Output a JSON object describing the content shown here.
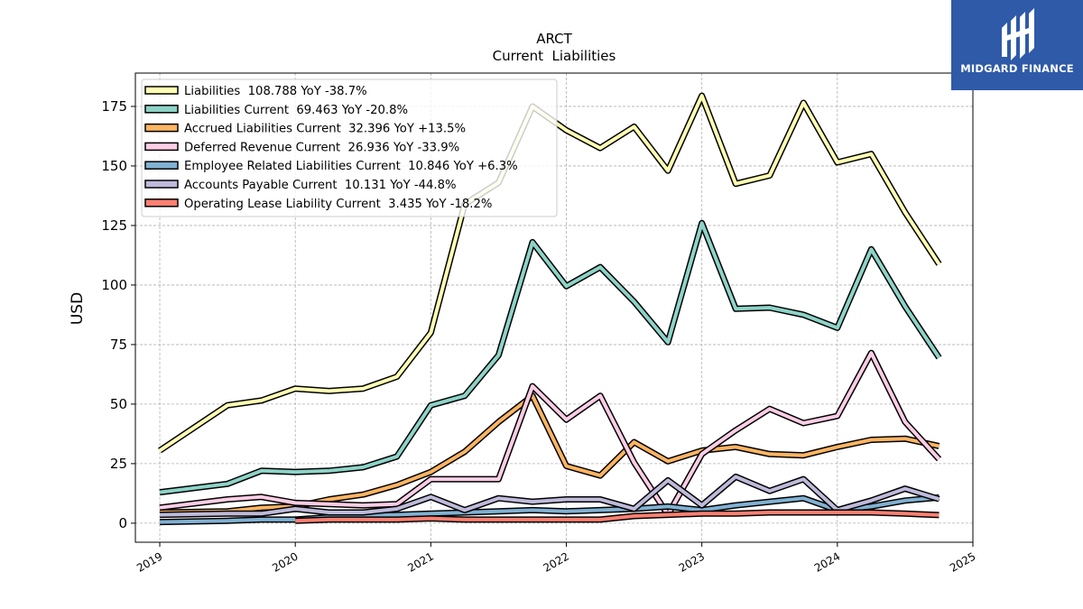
{
  "logo": {
    "text": "MIDGARD FINANCE"
  },
  "chart_data": {
    "type": "line",
    "title": "ARCT",
    "subtitle": "Current  Liabilities",
    "ylabel": "USD",
    "xlabel": "",
    "xlim": [
      2018.82,
      2025.0
    ],
    "ylim": [
      -8,
      189
    ],
    "yticks": [
      0,
      25,
      50,
      75,
      100,
      125,
      150,
      175
    ],
    "xticks": [
      2019,
      2020,
      2021,
      2022,
      2023,
      2024,
      2025
    ],
    "grid": true,
    "legend_position": "top-left",
    "series": [
      {
        "name": "Liabilities",
        "legend": "Liabilities  108.788 YoY -38.7%",
        "color": "#ffffb3",
        "points": [
          [
            2019.0,
            30.5
          ],
          [
            2019.5,
            49.5
          ],
          [
            2019.75,
            51.5
          ],
          [
            2020.0,
            56.5
          ],
          [
            2020.25,
            55.5
          ],
          [
            2020.5,
            56.5
          ],
          [
            2020.75,
            61.5
          ],
          [
            2021.0,
            80
          ],
          [
            2021.25,
            134
          ],
          [
            2021.5,
            143
          ],
          [
            2021.75,
            175
          ],
          [
            2022.0,
            165
          ],
          [
            2022.25,
            157.5
          ],
          [
            2022.5,
            166.5
          ],
          [
            2022.75,
            148
          ],
          [
            2023.0,
            179.5
          ],
          [
            2023.25,
            142.5
          ],
          [
            2023.5,
            146
          ],
          [
            2023.75,
            176.5
          ],
          [
            2024.0,
            151.5
          ],
          [
            2024.25,
            155
          ],
          [
            2024.5,
            130.5
          ],
          [
            2024.75,
            108.8
          ]
        ]
      },
      {
        "name": "Liabilities Current",
        "legend": "Liabilities Current  69.463 YoY -20.8%",
        "color": "#8dd3c7",
        "points": [
          [
            2019.0,
            13
          ],
          [
            2019.5,
            16.5
          ],
          [
            2019.75,
            22
          ],
          [
            2020.0,
            21.5
          ],
          [
            2020.25,
            22
          ],
          [
            2020.5,
            23.5
          ],
          [
            2020.75,
            28
          ],
          [
            2021.0,
            49.5
          ],
          [
            2021.25,
            53.5
          ],
          [
            2021.5,
            70.5
          ],
          [
            2021.75,
            118
          ],
          [
            2022.0,
            99.5
          ],
          [
            2022.25,
            107.5
          ],
          [
            2022.5,
            93
          ],
          [
            2022.75,
            76
          ],
          [
            2023.0,
            126
          ],
          [
            2023.25,
            90
          ],
          [
            2023.5,
            90.5
          ],
          [
            2023.75,
            87.5
          ],
          [
            2024.0,
            82
          ],
          [
            2024.25,
            115
          ],
          [
            2024.5,
            91
          ],
          [
            2024.75,
            69.5
          ]
        ]
      },
      {
        "name": "Accrued Liabilities Current",
        "legend": "Accrued Liabilities Current  32.396 YoY +13.5%",
        "color": "#fdb462",
        "points": [
          [
            2019.0,
            4.5
          ],
          [
            2019.5,
            5
          ],
          [
            2019.75,
            6.5
          ],
          [
            2020.0,
            7
          ],
          [
            2020.25,
            10
          ],
          [
            2020.5,
            12
          ],
          [
            2020.75,
            16
          ],
          [
            2021.0,
            21.5
          ],
          [
            2021.25,
            30
          ],
          [
            2021.5,
            42.5
          ],
          [
            2021.75,
            53.5
          ],
          [
            2022.0,
            24
          ],
          [
            2022.25,
            20
          ],
          [
            2022.5,
            34
          ],
          [
            2022.75,
            26
          ],
          [
            2023.0,
            30.5
          ],
          [
            2023.25,
            32
          ],
          [
            2023.5,
            29
          ],
          [
            2023.75,
            28.5
          ],
          [
            2024.0,
            32
          ],
          [
            2024.25,
            35
          ],
          [
            2024.5,
            35.5
          ],
          [
            2024.75,
            32.4
          ]
        ]
      },
      {
        "name": "Deferred Revenue Current",
        "legend": "Deferred Revenue Current  26.936 YoY -33.9%",
        "color": "#fccde5",
        "points": [
          [
            2019.0,
            6.5
          ],
          [
            2019.5,
            10
          ],
          [
            2019.75,
            11
          ],
          [
            2020.0,
            8.5
          ],
          [
            2020.25,
            8
          ],
          [
            2020.5,
            7.5
          ],
          [
            2020.75,
            8
          ],
          [
            2021.0,
            18.5
          ],
          [
            2021.25,
            18.5
          ],
          [
            2021.5,
            18.5
          ],
          [
            2021.75,
            57.5
          ],
          [
            2022.0,
            43.5
          ],
          [
            2022.25,
            53.5
          ],
          [
            2022.5,
            25.5
          ],
          [
            2022.75,
            3.5
          ],
          [
            2023.0,
            29
          ],
          [
            2023.25,
            39
          ],
          [
            2023.5,
            48
          ],
          [
            2023.75,
            42
          ],
          [
            2024.0,
            45
          ],
          [
            2024.25,
            71.5
          ],
          [
            2024.5,
            42.5
          ],
          [
            2024.75,
            26.9
          ]
        ]
      },
      {
        "name": "Employee Related Liabilities Current",
        "legend": "Employee Related Liabilities Current  10.846 YoY +6.3%",
        "color": "#80b1d3",
        "points": [
          [
            2019.0,
            0.5
          ],
          [
            2019.5,
            1
          ],
          [
            2019.75,
            1.5
          ],
          [
            2020.0,
            1.5
          ],
          [
            2020.25,
            2.5
          ],
          [
            2020.5,
            3
          ],
          [
            2020.75,
            3.5
          ],
          [
            2021.0,
            4
          ],
          [
            2021.25,
            4.5
          ],
          [
            2021.5,
            5
          ],
          [
            2021.75,
            5.5
          ],
          [
            2022.0,
            5
          ],
          [
            2022.25,
            5.5
          ],
          [
            2022.5,
            6
          ],
          [
            2022.75,
            7
          ],
          [
            2023.0,
            5.5
          ],
          [
            2023.25,
            7.5
          ],
          [
            2023.5,
            9
          ],
          [
            2023.75,
            10.5
          ],
          [
            2024.0,
            5.5
          ],
          [
            2024.25,
            7
          ],
          [
            2024.5,
            9.5
          ],
          [
            2024.75,
            10.8
          ]
        ]
      },
      {
        "name": "Accounts Payable Current",
        "legend": "Accounts Payable Current  10.131 YoY -44.8%",
        "color": "#bebada",
        "points": [
          [
            2019.0,
            3.5
          ],
          [
            2019.5,
            4
          ],
          [
            2019.75,
            4
          ],
          [
            2020.0,
            6
          ],
          [
            2020.25,
            4.5
          ],
          [
            2020.5,
            4.5
          ],
          [
            2020.75,
            6
          ],
          [
            2021.0,
            11
          ],
          [
            2021.25,
            5.5
          ],
          [
            2021.5,
            10.5
          ],
          [
            2021.75,
            9
          ],
          [
            2022.0,
            10
          ],
          [
            2022.25,
            10
          ],
          [
            2022.5,
            6
          ],
          [
            2022.75,
            18
          ],
          [
            2023.0,
            7.5
          ],
          [
            2023.25,
            19.5
          ],
          [
            2023.5,
            13.5
          ],
          [
            2023.75,
            18.5
          ],
          [
            2024.0,
            5.5
          ],
          [
            2024.25,
            9.5
          ],
          [
            2024.5,
            14.5
          ],
          [
            2024.75,
            10.1
          ]
        ]
      },
      {
        "name": "Operating Lease Liability Current",
        "legend": "Operating Lease Liability Current  3.435 YoY -18.2%",
        "color": "#fb8072",
        "points": [
          [
            2020.0,
            1
          ],
          [
            2020.25,
            1.5
          ],
          [
            2020.5,
            1.5
          ],
          [
            2020.75,
            1.5
          ],
          [
            2021.0,
            2
          ],
          [
            2021.25,
            1.5
          ],
          [
            2021.5,
            1.5
          ],
          [
            2021.75,
            1.5
          ],
          [
            2022.0,
            1.5
          ],
          [
            2022.25,
            1.5
          ],
          [
            2022.5,
            3
          ],
          [
            2022.75,
            3.5
          ],
          [
            2023.0,
            4
          ],
          [
            2023.25,
            4
          ],
          [
            2023.5,
            4.5
          ],
          [
            2023.75,
            4.5
          ],
          [
            2024.0,
            4.5
          ],
          [
            2024.25,
            4.5
          ],
          [
            2024.5,
            4
          ],
          [
            2024.75,
            3.4
          ]
        ]
      }
    ]
  }
}
